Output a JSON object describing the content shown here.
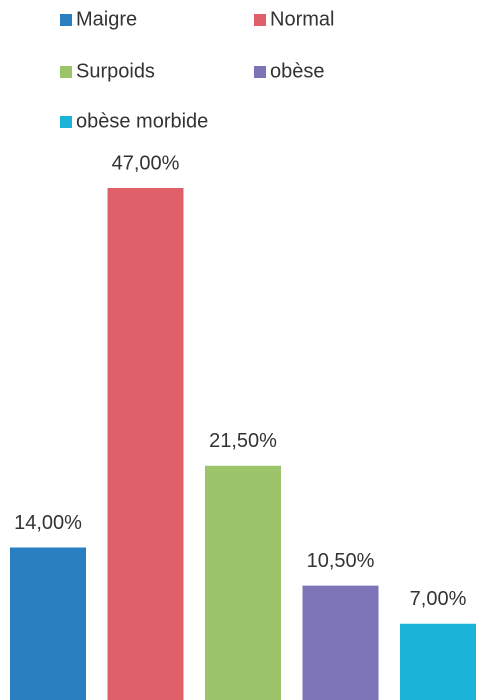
{
  "chart_data": {
    "type": "bar",
    "series": [
      {
        "name": "Maigre",
        "color": "#2a7fc1",
        "values": [
          14
        ],
        "value_labels": [
          "14,00%"
        ]
      },
      {
        "name": "Normal",
        "color": "#e0606a",
        "values": [
          47
        ],
        "value_labels": [
          "47,00%"
        ]
      },
      {
        "name": "Surpoids",
        "color": "#9cc46a",
        "values": [
          21.5
        ],
        "value_labels": [
          "21,50%"
        ]
      },
      {
        "name": "obèse",
        "color": "#7b75b8",
        "values": [
          10.5
        ],
        "value_labels": [
          "10,50%"
        ]
      },
      {
        "name": "obèse morbide",
        "color": "#1bb4d8",
        "values": [
          7
        ],
        "value_labels": [
          "7,00%"
        ]
      }
    ],
    "legend": "top"
  }
}
